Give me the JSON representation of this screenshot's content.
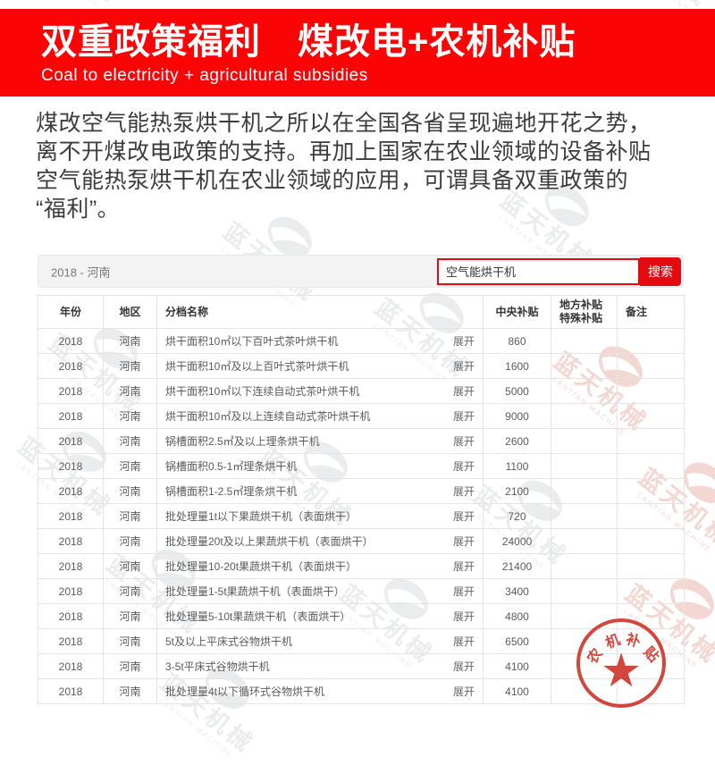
{
  "banner": {
    "title": "双重政策福利　煤改电+农机补贴",
    "subtitle": "Coal to electricity + agricultural subsidies"
  },
  "intro": {
    "lines": [
      "煤改空气能热泵烘干机之所以在全国各省呈现遍地开花之势，",
      "离不开煤改电政策的支持。再加上国家在农业领域的设备补贴",
      "空气能热泵烘干机在农业领域的应用，可谓具备双重政策的",
      "“福利”。"
    ]
  },
  "filter_bar": {
    "label": "2018 - 河南",
    "search_value": "空气能烘干机",
    "search_button": "搜索"
  },
  "table": {
    "headers": {
      "year": "年份",
      "region": "地区",
      "name": "分档名称",
      "central": "中央补贴",
      "local1": "地方补贴",
      "local2": "特殊补贴",
      "remark": "备注"
    },
    "expand_label": "展开",
    "rows": [
      {
        "year": "2018",
        "region": "河南",
        "name": "烘干面积10㎡以下百叶式茶叶烘干机",
        "central": "860",
        "local": "",
        "remark": ""
      },
      {
        "year": "2018",
        "region": "河南",
        "name": "烘干面积10㎡及以上百叶式茶叶烘干机",
        "central": "1600",
        "local": "",
        "remark": ""
      },
      {
        "year": "2018",
        "region": "河南",
        "name": "烘干面积10㎡以下连续自动式茶叶烘干机",
        "central": "5000",
        "local": "",
        "remark": ""
      },
      {
        "year": "2018",
        "region": "河南",
        "name": "烘干面积10㎡及以上连续自动式茶叶烘干机",
        "central": "9000",
        "local": "",
        "remark": ""
      },
      {
        "year": "2018",
        "region": "河南",
        "name": "锅槽面积2.5㎡及以上理条烘干机",
        "central": "2600",
        "local": "",
        "remark": ""
      },
      {
        "year": "2018",
        "region": "河南",
        "name": "锅槽面积0.5-1㎡理条烘干机",
        "central": "1100",
        "local": "",
        "remark": ""
      },
      {
        "year": "2018",
        "region": "河南",
        "name": "锅槽面积1-2.5㎡理条烘干机",
        "central": "2100",
        "local": "",
        "remark": ""
      },
      {
        "year": "2018",
        "region": "河南",
        "name": "批处理量1t以下果蔬烘干机（表面烘干）",
        "central": "720",
        "local": "",
        "remark": ""
      },
      {
        "year": "2018",
        "region": "河南",
        "name": "批处理量20t及以上果蔬烘干机（表面烘干）",
        "central": "24000",
        "local": "",
        "remark": ""
      },
      {
        "year": "2018",
        "region": "河南",
        "name": "批处理量10-20t果蔬烘干机（表面烘干）",
        "central": "21400",
        "local": "",
        "remark": ""
      },
      {
        "year": "2018",
        "region": "河南",
        "name": "批处理量1-5t果蔬烘干机（表面烘干）",
        "central": "3400",
        "local": "",
        "remark": ""
      },
      {
        "year": "2018",
        "region": "河南",
        "name": "批处理量5-10t果蔬烘干机（表面烘干）",
        "central": "4800",
        "local": "",
        "remark": ""
      },
      {
        "year": "2018",
        "region": "河南",
        "name": "5t及以上平床式谷物烘干机",
        "central": "6500",
        "local": "",
        "remark": ""
      },
      {
        "year": "2018",
        "region": "河南",
        "name": "3-5t平床式谷物烘干机",
        "central": "4100",
        "local": "",
        "remark": ""
      },
      {
        "year": "2018",
        "region": "河南",
        "name": "批处理量4t以下循环式谷物烘干机",
        "central": "4100",
        "local": "",
        "remark": ""
      }
    ]
  },
  "stamp": {
    "text": "农机补贴",
    "chars": [
      "农",
      "机",
      "补",
      "贴"
    ],
    "star_icon": "★"
  },
  "watermark": {
    "text": "蓝天机械",
    "subtext": "LANTIAN MACHINE"
  },
  "colors": {
    "banner_red": "#fa0406",
    "button_red": "#e30b10",
    "input_border_red": "#e30b10",
    "stamp_red": "#cf3a2d",
    "text_dark": "#3c3c3c",
    "table_text": "#5a5a5a",
    "header_text": "#333333",
    "border": "#e4e4e4",
    "bar_bg": "#f3f3f3",
    "bar_label": "#777777",
    "watermark_gray": "#c3cad0",
    "watermark_pink": "#e9b0a7"
  }
}
